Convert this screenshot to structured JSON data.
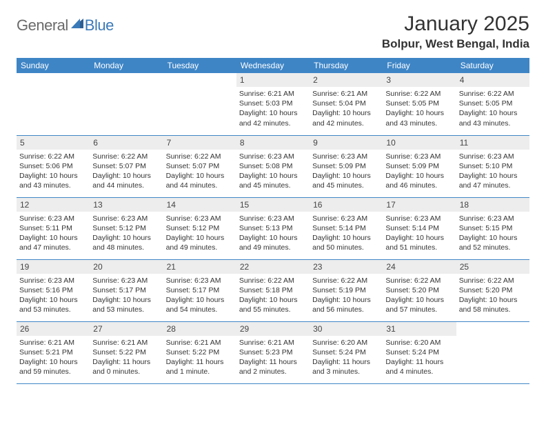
{
  "logo": {
    "text1": "General",
    "text2": "Blue"
  },
  "title": "January 2025",
  "location": "Bolpur, West Bengal, India",
  "colors": {
    "header_bg": "#3e85c6",
    "header_text": "#ffffff",
    "daynum_bg": "#ededed",
    "row_border": "#3e85c6",
    "logo_gray": "#6a6a6a",
    "logo_blue": "#3a7ab8",
    "body_text": "#333333"
  },
  "day_headers": [
    "Sunday",
    "Monday",
    "Tuesday",
    "Wednesday",
    "Thursday",
    "Friday",
    "Saturday"
  ],
  "weeks": [
    [
      null,
      null,
      null,
      {
        "n": "1",
        "sr": "6:21 AM",
        "ss": "5:03 PM",
        "dl": "10 hours and 42 minutes."
      },
      {
        "n": "2",
        "sr": "6:21 AM",
        "ss": "5:04 PM",
        "dl": "10 hours and 42 minutes."
      },
      {
        "n": "3",
        "sr": "6:22 AM",
        "ss": "5:05 PM",
        "dl": "10 hours and 43 minutes."
      },
      {
        "n": "4",
        "sr": "6:22 AM",
        "ss": "5:05 PM",
        "dl": "10 hours and 43 minutes."
      }
    ],
    [
      {
        "n": "5",
        "sr": "6:22 AM",
        "ss": "5:06 PM",
        "dl": "10 hours and 43 minutes."
      },
      {
        "n": "6",
        "sr": "6:22 AM",
        "ss": "5:07 PM",
        "dl": "10 hours and 44 minutes."
      },
      {
        "n": "7",
        "sr": "6:22 AM",
        "ss": "5:07 PM",
        "dl": "10 hours and 44 minutes."
      },
      {
        "n": "8",
        "sr": "6:23 AM",
        "ss": "5:08 PM",
        "dl": "10 hours and 45 minutes."
      },
      {
        "n": "9",
        "sr": "6:23 AM",
        "ss": "5:09 PM",
        "dl": "10 hours and 45 minutes."
      },
      {
        "n": "10",
        "sr": "6:23 AM",
        "ss": "5:09 PM",
        "dl": "10 hours and 46 minutes."
      },
      {
        "n": "11",
        "sr": "6:23 AM",
        "ss": "5:10 PM",
        "dl": "10 hours and 47 minutes."
      }
    ],
    [
      {
        "n": "12",
        "sr": "6:23 AM",
        "ss": "5:11 PM",
        "dl": "10 hours and 47 minutes."
      },
      {
        "n": "13",
        "sr": "6:23 AM",
        "ss": "5:12 PM",
        "dl": "10 hours and 48 minutes."
      },
      {
        "n": "14",
        "sr": "6:23 AM",
        "ss": "5:12 PM",
        "dl": "10 hours and 49 minutes."
      },
      {
        "n": "15",
        "sr": "6:23 AM",
        "ss": "5:13 PM",
        "dl": "10 hours and 49 minutes."
      },
      {
        "n": "16",
        "sr": "6:23 AM",
        "ss": "5:14 PM",
        "dl": "10 hours and 50 minutes."
      },
      {
        "n": "17",
        "sr": "6:23 AM",
        "ss": "5:14 PM",
        "dl": "10 hours and 51 minutes."
      },
      {
        "n": "18",
        "sr": "6:23 AM",
        "ss": "5:15 PM",
        "dl": "10 hours and 52 minutes."
      }
    ],
    [
      {
        "n": "19",
        "sr": "6:23 AM",
        "ss": "5:16 PM",
        "dl": "10 hours and 53 minutes."
      },
      {
        "n": "20",
        "sr": "6:23 AM",
        "ss": "5:17 PM",
        "dl": "10 hours and 53 minutes."
      },
      {
        "n": "21",
        "sr": "6:23 AM",
        "ss": "5:17 PM",
        "dl": "10 hours and 54 minutes."
      },
      {
        "n": "22",
        "sr": "6:22 AM",
        "ss": "5:18 PM",
        "dl": "10 hours and 55 minutes."
      },
      {
        "n": "23",
        "sr": "6:22 AM",
        "ss": "5:19 PM",
        "dl": "10 hours and 56 minutes."
      },
      {
        "n": "24",
        "sr": "6:22 AM",
        "ss": "5:20 PM",
        "dl": "10 hours and 57 minutes."
      },
      {
        "n": "25",
        "sr": "6:22 AM",
        "ss": "5:20 PM",
        "dl": "10 hours and 58 minutes."
      }
    ],
    [
      {
        "n": "26",
        "sr": "6:21 AM",
        "ss": "5:21 PM",
        "dl": "10 hours and 59 minutes."
      },
      {
        "n": "27",
        "sr": "6:21 AM",
        "ss": "5:22 PM",
        "dl": "11 hours and 0 minutes."
      },
      {
        "n": "28",
        "sr": "6:21 AM",
        "ss": "5:22 PM",
        "dl": "11 hours and 1 minute."
      },
      {
        "n": "29",
        "sr": "6:21 AM",
        "ss": "5:23 PM",
        "dl": "11 hours and 2 minutes."
      },
      {
        "n": "30",
        "sr": "6:20 AM",
        "ss": "5:24 PM",
        "dl": "11 hours and 3 minutes."
      },
      {
        "n": "31",
        "sr": "6:20 AM",
        "ss": "5:24 PM",
        "dl": "11 hours and 4 minutes."
      },
      null
    ]
  ],
  "labels": {
    "sunrise": "Sunrise:",
    "sunset": "Sunset:",
    "daylight": "Daylight:"
  }
}
